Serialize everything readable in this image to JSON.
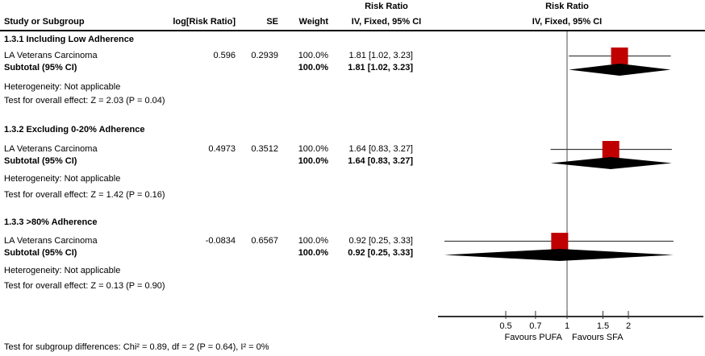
{
  "colors": {
    "marker": "#c00000",
    "ci_line": "#404040",
    "diamond": "#000000",
    "axis": "#333333",
    "null_line": "#4d4d4d",
    "text": "#000000"
  },
  "header": {
    "study_col": "Study or Subgroup",
    "log_col": "log[Risk Ratio]",
    "se_col": "SE",
    "weight_col": "Weight",
    "effect_title": "Risk Ratio",
    "effect_subtitle": "IV, Fixed, 95% CI",
    "plot_title": "Risk Ratio",
    "plot_subtitle": "IV, Fixed, 95% CI"
  },
  "subgroups": [
    {
      "title": "1.3.1 Including Low Adherence",
      "study": {
        "name": "LA Veterans Carcinoma",
        "log_rr": "0.596",
        "se": "0.2939",
        "weight": "100.0%",
        "ci_text": "1.81 [1.02, 3.23]"
      },
      "subtotal": {
        "label": "Subtotal (95% CI)",
        "weight": "100.0%",
        "ci_text": "1.81 [1.02, 3.23]"
      },
      "heterogeneity": "Heterogeneity: Not applicable",
      "overall_effect": "Test for overall effect: Z = 2.03 (P = 0.04)"
    },
    {
      "title": "1.3.2 Excluding 0-20% Adherence",
      "study": {
        "name": "LA Veterans Carcinoma",
        "log_rr": "0.4973",
        "se": "0.3512",
        "weight": "100.0%",
        "ci_text": "1.64 [0.83, 3.27]"
      },
      "subtotal": {
        "label": "Subtotal (95% CI)",
        "weight": "100.0%",
        "ci_text": "1.64 [0.83, 3.27]"
      },
      "heterogeneity": "Heterogeneity: Not applicable",
      "overall_effect": "Test for overall effect: Z = 1.42 (P = 0.16)"
    },
    {
      "title": "1.3.3 >80% Adherence",
      "study": {
        "name": "LA Veterans Carcinoma",
        "log_rr": "-0.0834",
        "se": "0.6567",
        "weight": "100.0%",
        "ci_text": "0.92 [0.25, 3.33]"
      },
      "subtotal": {
        "label": "Subtotal (95% CI)",
        "weight": "100.0%",
        "ci_text": "0.92 [0.25, 3.33]"
      },
      "heterogeneity": "Heterogeneity: Not applicable",
      "overall_effect": "Test for overall effect: Z = 0.13 (P = 0.90)"
    }
  ],
  "footer": "Test for subgroup differences: Chi² = 0.89, df = 2 (P = 0.64), I² = 0%",
  "chart_data": {
    "type": "scatter",
    "variant": "forest-plot",
    "effect_measure": "Risk Ratio",
    "model": "IV, Fixed, 95% CI",
    "xscale": "log",
    "xticks": [
      0.5,
      0.7,
      1,
      1.5,
      2
    ],
    "xlim": [
      0.23,
      4.7
    ],
    "null_value": 1,
    "favours_left": "Favours PUFA",
    "favours_right": "Favours SFA",
    "groups": [
      {
        "name": "1.3.1 Including Low Adherence",
        "study": {
          "label": "LA Veterans Carcinoma",
          "rr": 1.81,
          "ci_low": 1.02,
          "ci_high": 3.23,
          "weight_pct": 100.0
        },
        "subtotal": {
          "rr": 1.81,
          "ci_low": 1.02,
          "ci_high": 3.23
        }
      },
      {
        "name": "1.3.2 Excluding 0-20% Adherence",
        "study": {
          "label": "LA Veterans Carcinoma",
          "rr": 1.64,
          "ci_low": 0.83,
          "ci_high": 3.27,
          "weight_pct": 100.0
        },
        "subtotal": {
          "rr": 1.64,
          "ci_low": 0.83,
          "ci_high": 3.27
        }
      },
      {
        "name": "1.3.3 >80% Adherence",
        "study": {
          "label": "LA Veterans Carcinoma",
          "rr": 0.92,
          "ci_low": 0.25,
          "ci_high": 3.33,
          "weight_pct": 100.0
        },
        "subtotal": {
          "rr": 0.92,
          "ci_low": 0.25,
          "ci_high": 3.33
        }
      }
    ]
  }
}
